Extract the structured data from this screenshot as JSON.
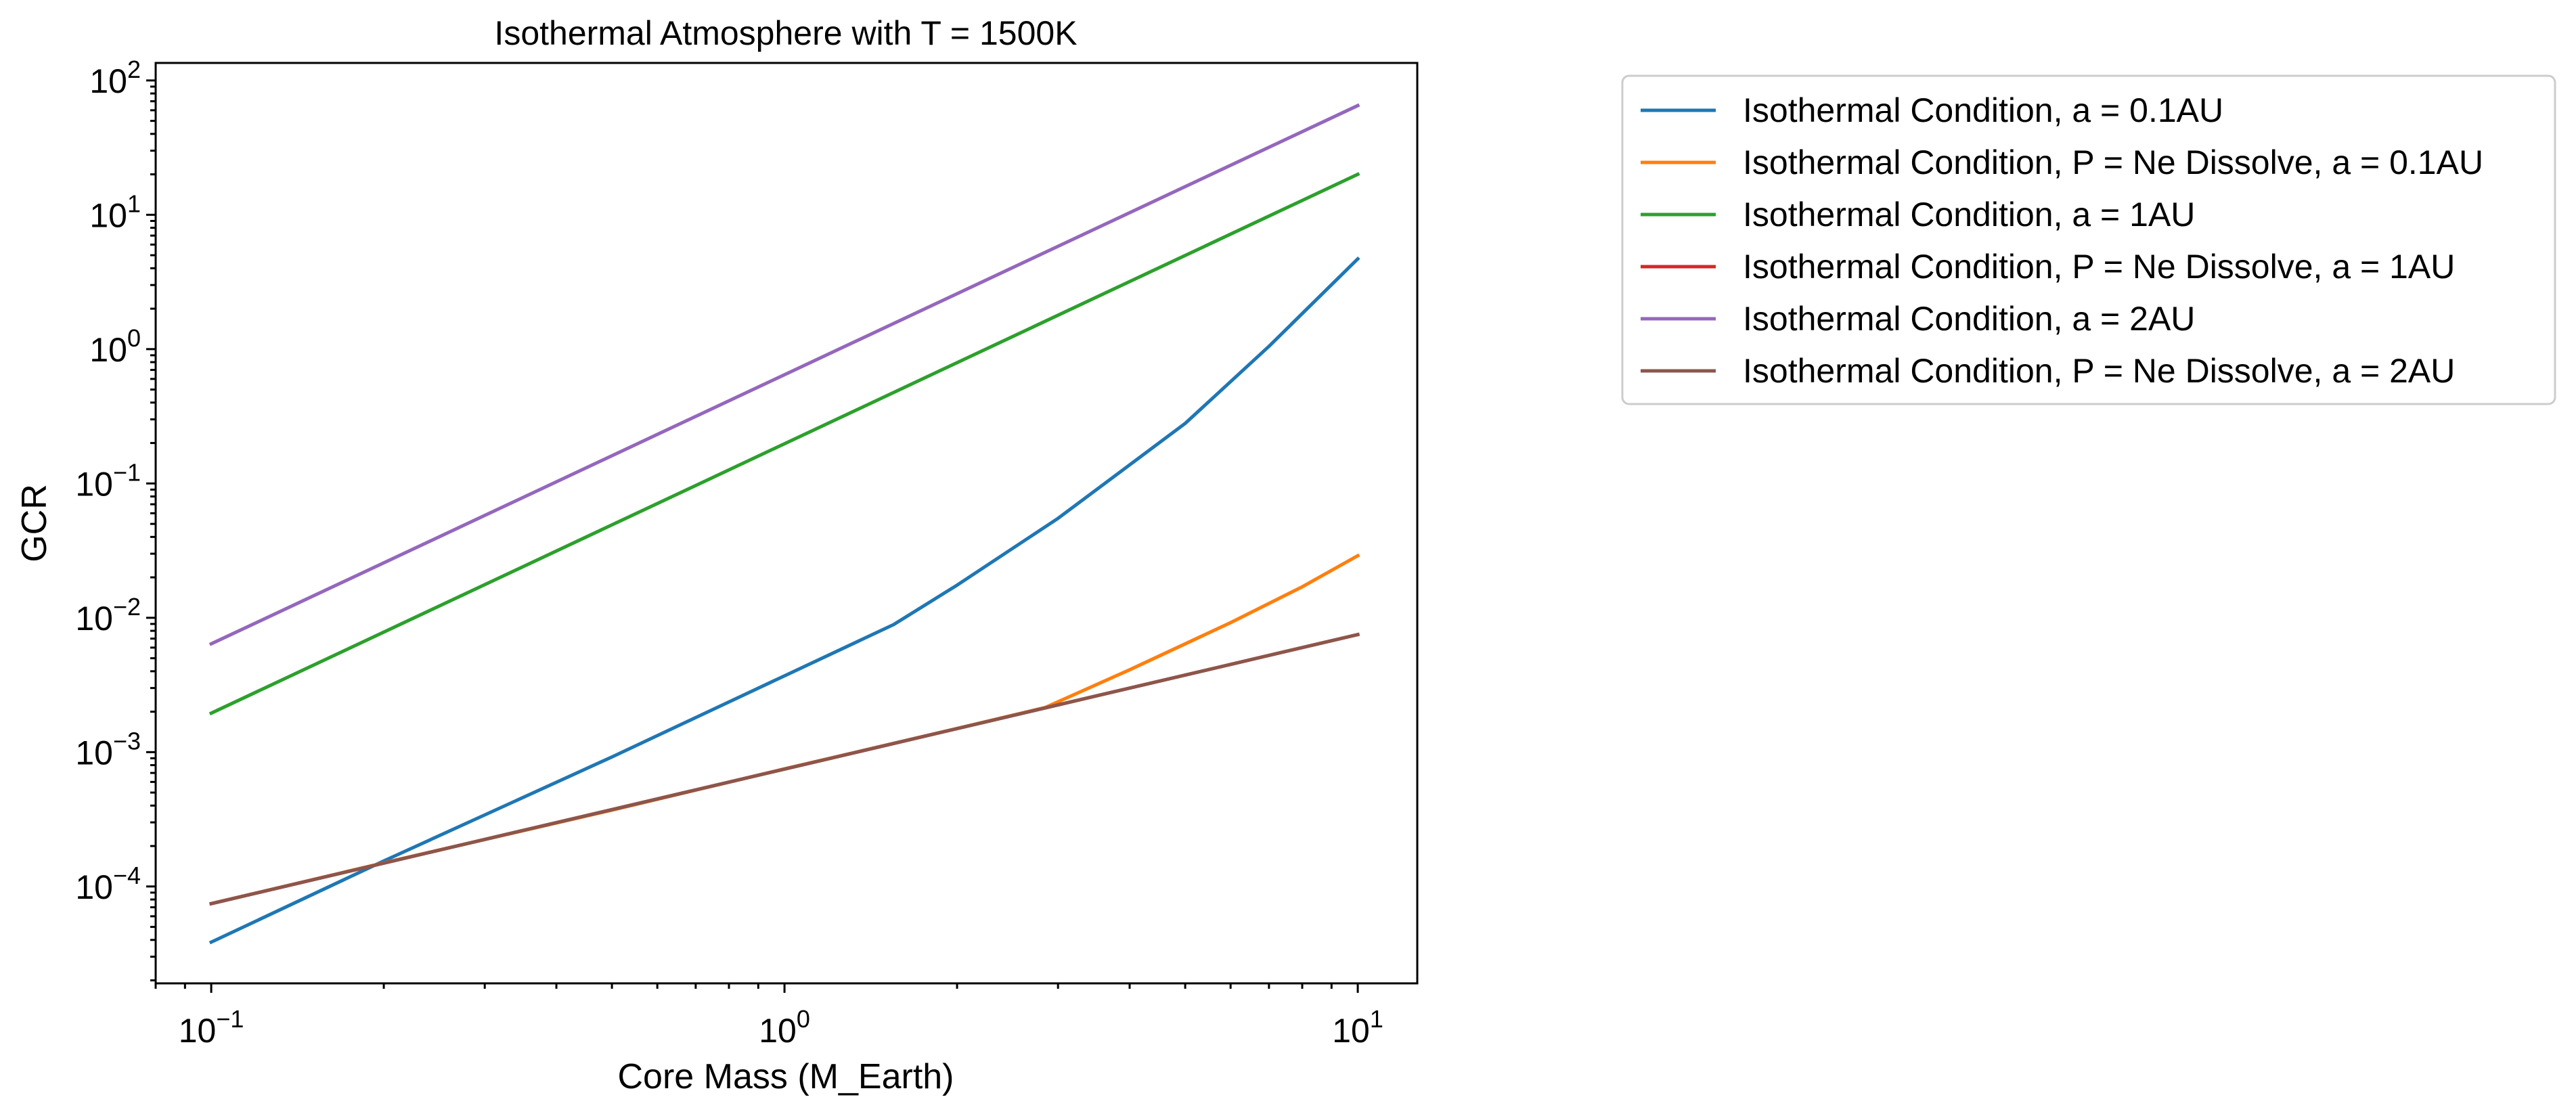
{
  "chart_data": {
    "type": "line",
    "title": "Isothermal Atmosphere with T = 1500K",
    "xlabel": "Core Mass (M_Earth)",
    "ylabel": "GCR",
    "xscale": "log",
    "yscale": "log",
    "xlim": [
      0.08,
      12.7
    ],
    "ylim": [
      1.9e-05,
      135
    ],
    "xticks": [
      {
        "value": 0.1,
        "base": "10",
        "exp": "−1"
      },
      {
        "value": 1,
        "base": "10",
        "exp": "0"
      },
      {
        "value": 10,
        "base": "10",
        "exp": "1"
      }
    ],
    "yticks": [
      {
        "value": 0.0001,
        "base": "10",
        "exp": "−4"
      },
      {
        "value": 0.001,
        "base": "10",
        "exp": "−3"
      },
      {
        "value": 0.01,
        "base": "10",
        "exp": "−2"
      },
      {
        "value": 0.1,
        "base": "10",
        "exp": "−1"
      },
      {
        "value": 1,
        "base": "10",
        "exp": "0"
      },
      {
        "value": 10,
        "base": "10",
        "exp": "1"
      },
      {
        "value": 100,
        "base": "10",
        "exp": "2"
      }
    ],
    "grid": false,
    "legend_position": "outside-right-top",
    "series": [
      {
        "name": "Isothermal Condition, a = 0.1AU",
        "color": "#1f77b4",
        "x": [
          0.1,
          0.2,
          0.5,
          1.0,
          1.55,
          2.0,
          3.0,
          5.0,
          7.0,
          10.0
        ],
        "y": [
          3.85e-05,
          0.000155,
          0.00092,
          0.0037,
          0.0089,
          0.0175,
          0.055,
          0.28,
          1.05,
          4.7
        ]
      },
      {
        "name": "Isothermal Condition, P = Ne Dissolve, a = 0.1AU",
        "color": "#ff7f0e",
        "x": [
          0.1,
          0.2,
          0.5,
          1.0,
          2.0,
          2.85,
          4.0,
          6.0,
          8.0,
          10.0
        ],
        "y": [
          7.45e-05,
          0.00015,
          0.00037,
          0.00075,
          0.0015,
          0.00215,
          0.0041,
          0.0092,
          0.017,
          0.029
        ]
      },
      {
        "name": "Isothermal Condition, a = 1AU",
        "color": "#2ca02c",
        "x": [
          0.1,
          10.0
        ],
        "y": [
          0.00195,
          20.0
        ]
      },
      {
        "name": "Isothermal Condition, P = Ne Dissolve, a = 1AU",
        "color": "#d62728",
        "x": [
          0.1,
          10.0
        ],
        "y": [
          7.45e-05,
          0.0075
        ]
      },
      {
        "name": "Isothermal Condition, a = 2AU",
        "color": "#9467bd",
        "x": [
          0.1,
          10.0
        ],
        "y": [
          0.0064,
          65.0
        ]
      },
      {
        "name": "Isothermal Condition, P = Ne Dissolve, a = 2AU",
        "color": "#8c564b",
        "x": [
          0.1,
          10.0
        ],
        "y": [
          7.45e-05,
          0.0075
        ]
      }
    ]
  }
}
